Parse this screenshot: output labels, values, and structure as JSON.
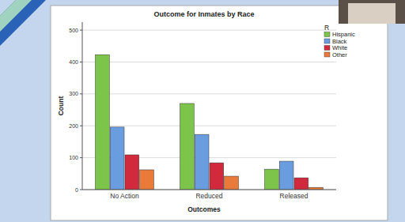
{
  "chart_data": {
    "type": "bar",
    "title": "Outcome for Inmates by Race",
    "x_label": "Outcomes",
    "y_label": "Count",
    "legend_title": "R",
    "categories": [
      "No Action",
      "Reduced",
      "Released"
    ],
    "series": [
      {
        "name": "Hispanic",
        "color": "#7cc54a",
        "values": [
          423,
          270,
          64
        ]
      },
      {
        "name": "Black",
        "color": "#6a9de0",
        "values": [
          196,
          173,
          89
        ]
      },
      {
        "name": "White",
        "color": "#d12a3c",
        "values": [
          109,
          84,
          37
        ]
      },
      {
        "name": "Other",
        "color": "#e97a3a",
        "values": [
          62,
          42,
          7
        ]
      }
    ],
    "ylim": [
      0,
      525
    ],
    "yticks": [
      0,
      100,
      200,
      300,
      400,
      500
    ],
    "grid": true,
    "legend": "top-right"
  }
}
